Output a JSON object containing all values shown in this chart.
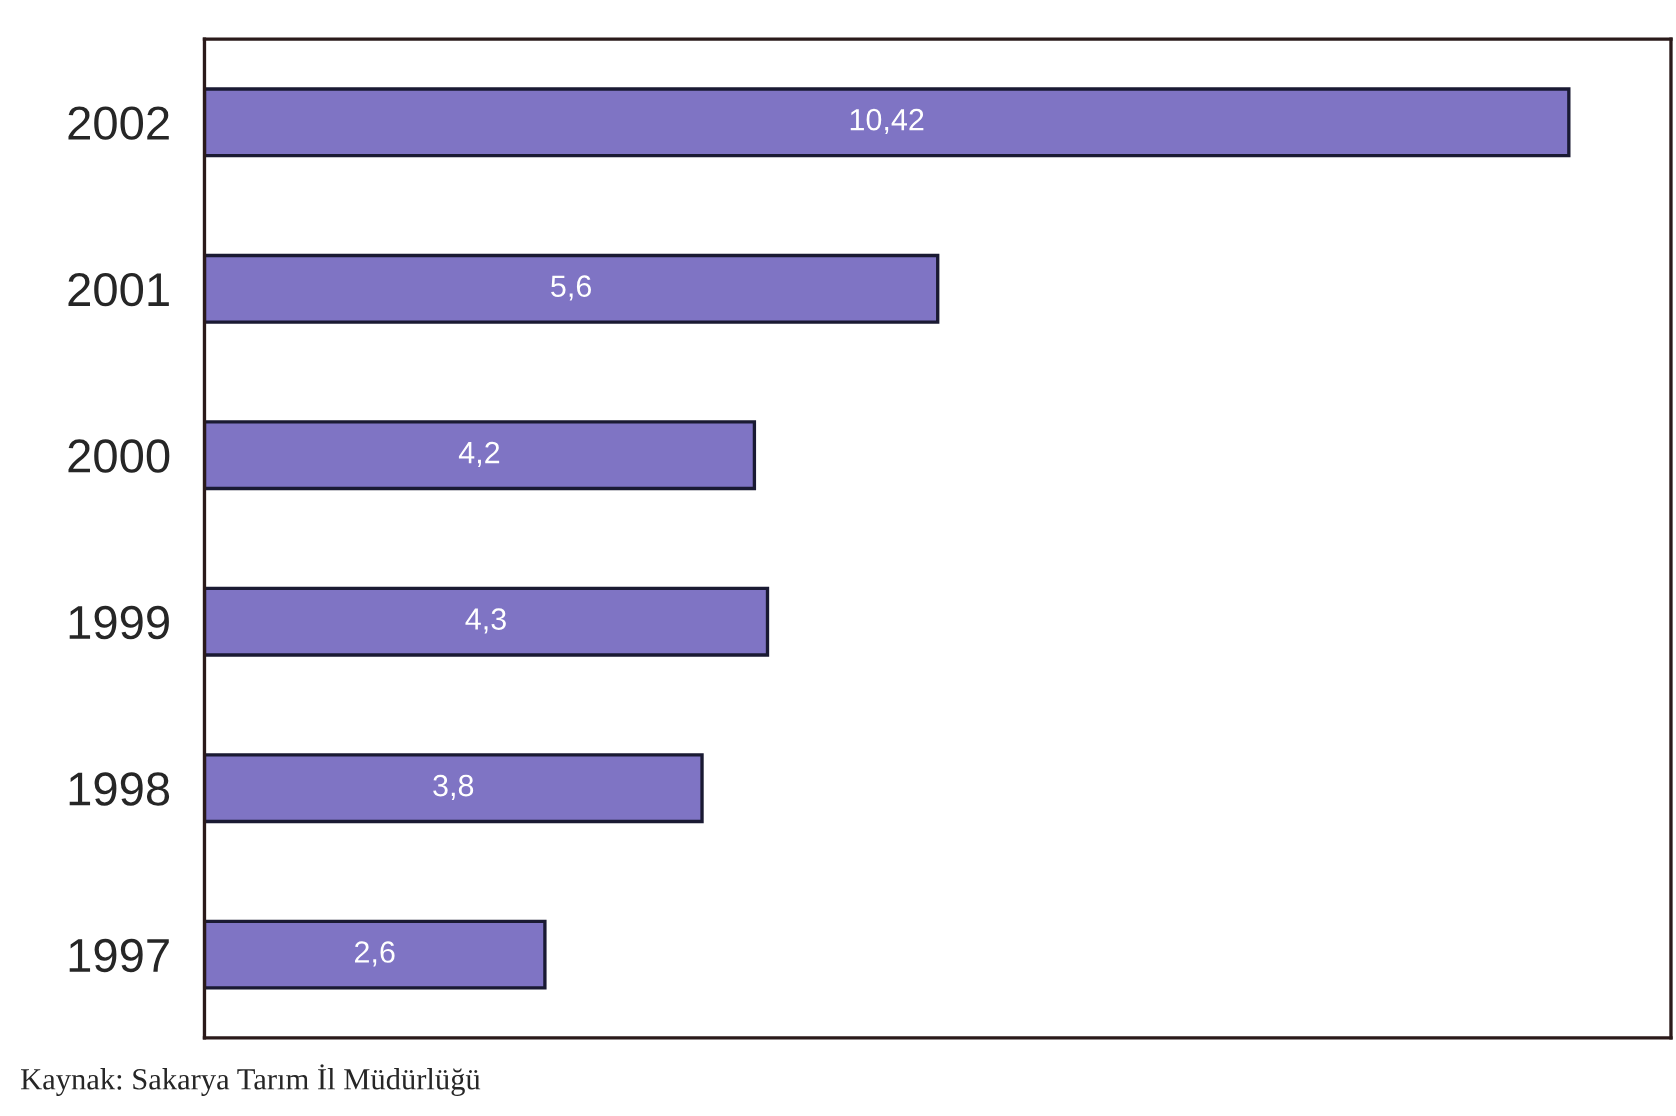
{
  "chart_data": {
    "type": "bar",
    "orientation": "horizontal",
    "categories": [
      "2002",
      "2001",
      "2000",
      "1999",
      "1998",
      "1997"
    ],
    "values": [
      10.42,
      5.6,
      4.2,
      4.3,
      3.8,
      2.6
    ],
    "value_labels": [
      "10,42",
      "5,6",
      "4,2",
      "4,3",
      "3,8",
      "2,6"
    ],
    "color": "#7f74c4",
    "xlim": [
      0,
      11.2
    ],
    "tick_labels": "y",
    "grid": false,
    "annotations": [
      "Kaynak: Sakarya Tarım İl Müdürlüğü"
    ]
  }
}
